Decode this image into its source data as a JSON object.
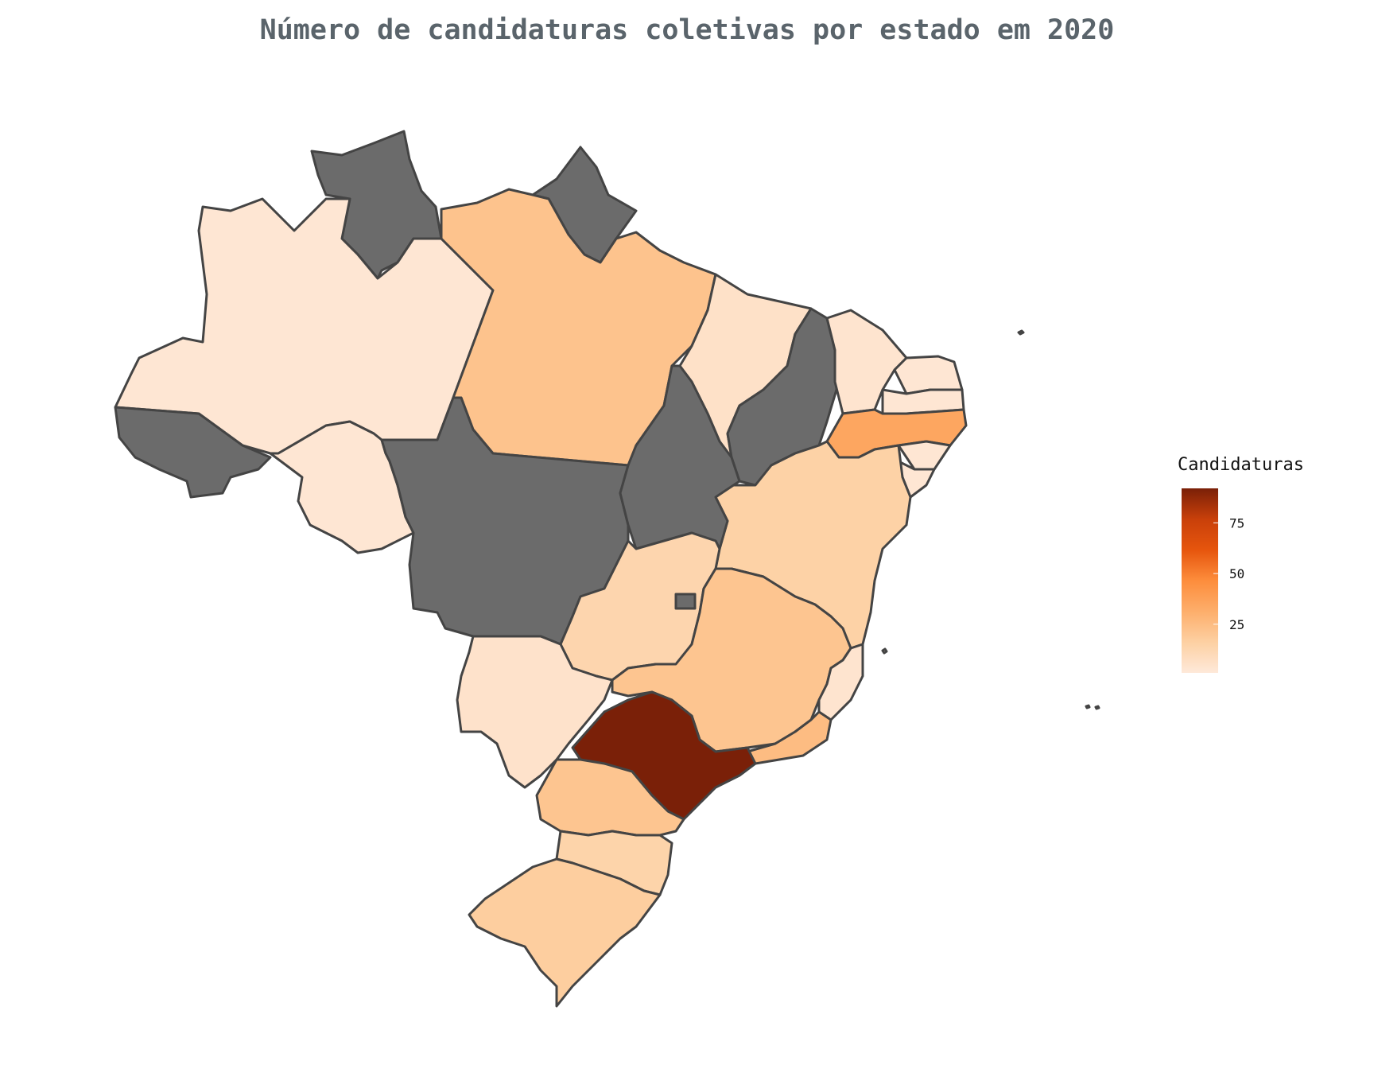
{
  "title": "Número de candidaturas coletivas por estado em 2020",
  "legend": {
    "title": "Candidaturas",
    "ticks": [
      {
        "label": "75",
        "value": 75
      },
      {
        "label": "50",
        "value": 50
      },
      {
        "label": "25",
        "value": 25
      }
    ],
    "range": [
      1,
      92
    ],
    "colors": [
      "#fee9da",
      "#fdd0a2",
      "#fdae6b",
      "#fd8d3c",
      "#e6550d",
      "#c9400a",
      "#7a2008"
    ]
  },
  "no_data_color": "#6b6b6b",
  "chart_data": {
    "type": "choropleth",
    "title": "Número de candidaturas coletivas por estado em 2020",
    "colorbar_title": "Candidaturas",
    "colorbar_ticks": [
      25,
      50,
      75
    ],
    "regions": [
      {
        "state": "RR",
        "value": null
      },
      {
        "state": "AP",
        "value": null
      },
      {
        "state": "AM",
        "value": 3
      },
      {
        "state": "PA",
        "value": 22
      },
      {
        "state": "MA",
        "value": 6
      },
      {
        "state": "PI",
        "value": null
      },
      {
        "state": "CE",
        "value": 4
      },
      {
        "state": "RN",
        "value": 3
      },
      {
        "state": "PB",
        "value": 3
      },
      {
        "state": "PE",
        "value": 35
      },
      {
        "state": "AL",
        "value": 3
      },
      {
        "state": "SE",
        "value": 3
      },
      {
        "state": "BA",
        "value": 15
      },
      {
        "state": "AC",
        "value": null
      },
      {
        "state": "RO",
        "value": 3
      },
      {
        "state": "MT",
        "value": null
      },
      {
        "state": "TO",
        "value": null
      },
      {
        "state": "GO",
        "value": 13
      },
      {
        "state": "DF",
        "value": null
      },
      {
        "state": "MS",
        "value": 5
      },
      {
        "state": "MG",
        "value": 21
      },
      {
        "state": "ES",
        "value": 4
      },
      {
        "state": "RJ",
        "value": 25
      },
      {
        "state": "SP",
        "value": 92
      },
      {
        "state": "PR",
        "value": 21
      },
      {
        "state": "SC",
        "value": 14
      },
      {
        "state": "RS",
        "value": 17
      }
    ]
  }
}
